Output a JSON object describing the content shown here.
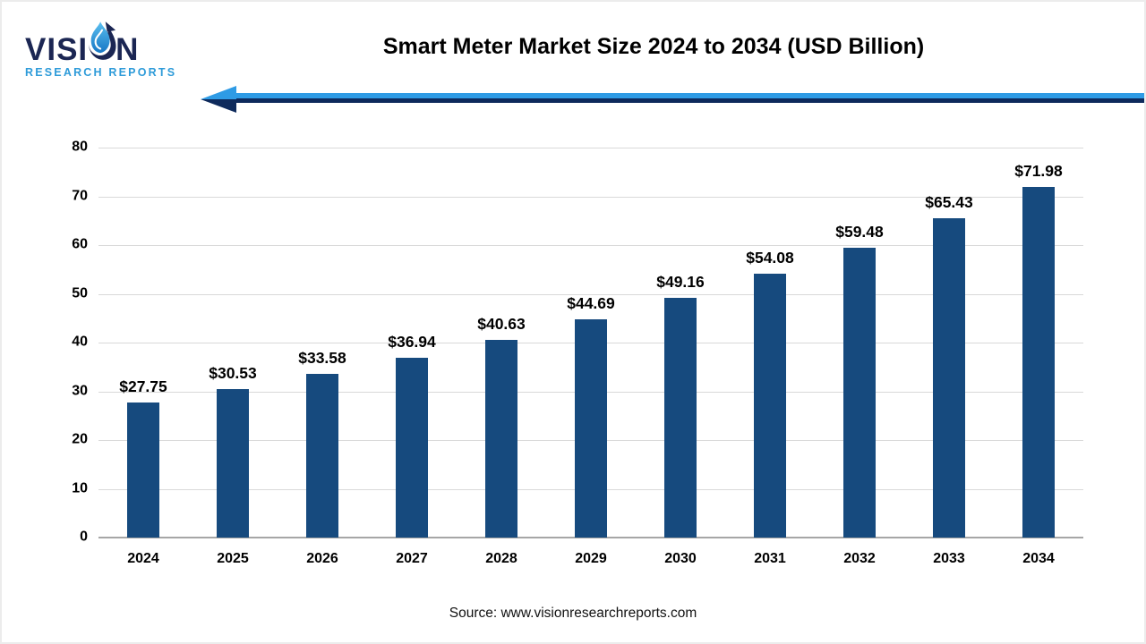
{
  "logo": {
    "brand_prefix": "VISI",
    "brand_suffix": "N",
    "subtitle": "RESEARCH REPORTS"
  },
  "header": {
    "title": "Smart Meter Market Size 2024 to 2034 (USD Billion)"
  },
  "footer": {
    "source": "Source: www.visionresearchreports.com"
  },
  "colors": {
    "bar": "#164A7E",
    "arrow_light": "#2E9BE5",
    "arrow_dark": "#0E2A5C",
    "logo_dark": "#1B2653",
    "logo_light": "#2E9BD9",
    "gridline": "#D9D9D9",
    "axis_line": "#A6A6A6"
  },
  "chart_data": {
    "type": "bar",
    "title": "Smart Meter Market Size 2024 to 2034 (USD Billion)",
    "categories": [
      "2024",
      "2025",
      "2026",
      "2027",
      "2028",
      "2029",
      "2030",
      "2031",
      "2032",
      "2033",
      "2034"
    ],
    "values": [
      27.75,
      30.53,
      33.58,
      36.94,
      40.63,
      44.69,
      49.16,
      54.08,
      59.48,
      65.43,
      71.98
    ],
    "data_labels": [
      "$27.75",
      "$30.53",
      "$33.58",
      "$36.94",
      "$40.63",
      "$44.69",
      "$49.16",
      "$54.08",
      "$59.48",
      "$65.43",
      "$71.98"
    ],
    "xlabel": "",
    "ylabel": "",
    "ylim": [
      0,
      80
    ],
    "yticks": [
      0,
      10,
      20,
      30,
      40,
      50,
      60,
      70,
      80
    ],
    "grid": true,
    "legend": "none",
    "bar_color": "#164A7E",
    "source": "Source: www.visionresearchreports.com"
  }
}
